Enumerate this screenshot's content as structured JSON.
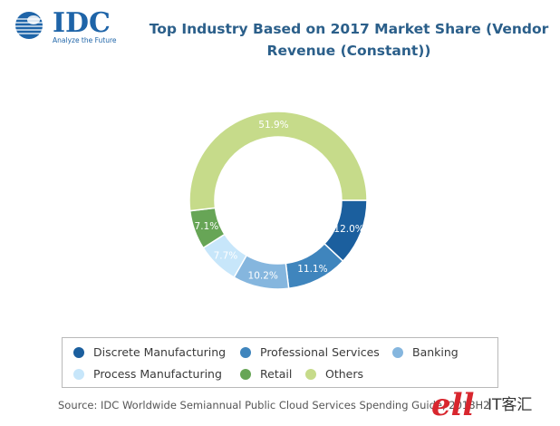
{
  "logo": {
    "name": "IDC",
    "tagline": "Analyze the Future",
    "color": "#1e64a8"
  },
  "chart_data": {
    "type": "pie",
    "donut": true,
    "title_lines": [
      "Top Industry Based on 2017 Market Share (Vendor",
      "Revenue (Constant))"
    ],
    "slices": [
      {
        "name": "Discrete Manufacturing",
        "value": 12.0,
        "label": "12.0%",
        "color": "#1b5f9e"
      },
      {
        "name": "Professional Services",
        "value": 11.1,
        "label": "11.1%",
        "color": "#3f85bd"
      },
      {
        "name": "Banking",
        "value": 10.2,
        "label": "10.2%",
        "color": "#85b6de"
      },
      {
        "name": "Process Manufacturing",
        "value": 7.7,
        "label": "7.7%",
        "color": "#c7e6fa"
      },
      {
        "name": "Retail",
        "value": 7.1,
        "label": "7.1%",
        "color": "#67a556"
      },
      {
        "name": "Others",
        "value": 51.9,
        "label": "51.9%",
        "color": "#c6db8a"
      }
    ],
    "legend_placement": "bottom",
    "start_angle_deg": 90,
    "direction": "clockwise"
  },
  "source": "Source: IDC Worldwide Semiannual Public Cloud Services Spending Guide, 2018H2",
  "watermark": "IT客汇"
}
